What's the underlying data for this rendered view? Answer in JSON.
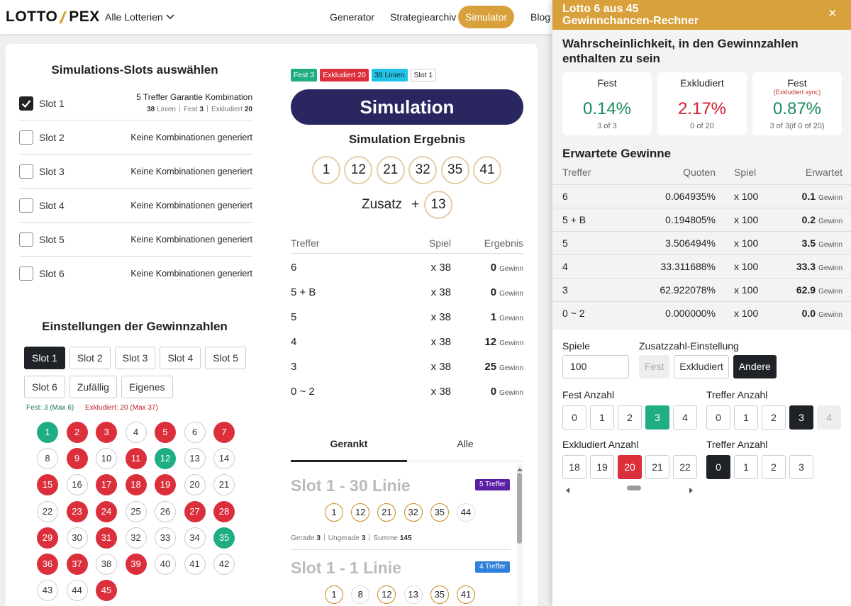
{
  "header": {
    "logo_left": "LOTTO",
    "logo_right": "PEX",
    "lottery_menu": "Alle Lotterien",
    "nav": [
      "Generator",
      "Strategiearchiv",
      "Simulator",
      "Blog"
    ],
    "active_nav": 2
  },
  "slots": {
    "title": "Simulations-Slots auswählen",
    "items": [
      {
        "label": "Slot 1",
        "checked": true,
        "desc": "5 Treffer Garantie Kombination",
        "meta": [
          [
            "38",
            "Linien"
          ],
          [
            "Fest",
            "3"
          ],
          [
            "Exkludiert",
            "20"
          ]
        ]
      },
      {
        "label": "Slot 2",
        "checked": false,
        "desc": "Keine Kombinationen generiert"
      },
      {
        "label": "Slot 3",
        "checked": false,
        "desc": "Keine Kombinationen generiert"
      },
      {
        "label": "Slot 4",
        "checked": false,
        "desc": "Keine Kombinationen generiert"
      },
      {
        "label": "Slot 5",
        "checked": false,
        "desc": "Keine Kombinationen generiert"
      },
      {
        "label": "Slot 6",
        "checked": false,
        "desc": "Keine Kombinationen generiert"
      }
    ]
  },
  "settings": {
    "title": "Einstellungen der Gewinnzahlen",
    "buttons": [
      "Slot 1",
      "Slot 2",
      "Slot 3",
      "Slot 4",
      "Slot 5",
      "Slot 6",
      "Zufällig",
      "Eigenes"
    ],
    "active": 0,
    "fest_note": "Fest: 3 (Max 6)",
    "excluded_note": "Exkludiert: 20 (Max 37)",
    "numbers": [
      1,
      2,
      3,
      4,
      5,
      6,
      7,
      8,
      9,
      10,
      11,
      12,
      13,
      14,
      15,
      16,
      17,
      18,
      19,
      20,
      21,
      22,
      23,
      24,
      25,
      26,
      27,
      28,
      29,
      30,
      31,
      32,
      33,
      34,
      35,
      36,
      37,
      38,
      39,
      40,
      41,
      42,
      43,
      44,
      45
    ],
    "fest": [
      1,
      12,
      35
    ],
    "excluded": [
      2,
      3,
      5,
      7,
      9,
      11,
      15,
      17,
      18,
      19,
      23,
      24,
      27,
      28,
      29,
      31,
      36,
      37,
      39,
      45
    ]
  },
  "simulation": {
    "tags": [
      {
        "text": "Fest 3",
        "color": "#1fae84",
        "text_color": "#ffffff"
      },
      {
        "text": "Exkludiert 20",
        "color": "#dc2f3c",
        "text_color": "#ffffff"
      },
      {
        "text": "38 Linien",
        "color": "#1fc4e8",
        "text_color": "#1f2328"
      },
      {
        "text": "Slot 1",
        "color": "#ffffff",
        "text_color": "#1f2328"
      }
    ],
    "button": "Simulation",
    "result_title": "Simulation Ergebnis",
    "balls": [
      1,
      12,
      21,
      32,
      35,
      41
    ],
    "bonus_label": "Zusatz",
    "plus": "+",
    "bonus": 13,
    "table": {
      "header": [
        "Treffer",
        "Spiel",
        "Ergebnis"
      ],
      "rows": [
        [
          "6",
          "x 38",
          "0",
          "Gewinn"
        ],
        [
          "5 + B",
          "x 38",
          "0",
          "Gewinn"
        ],
        [
          "5",
          "x 38",
          "1",
          "Gewinn"
        ],
        [
          "4",
          "x 38",
          "12",
          "Gewinn"
        ],
        [
          "3",
          "x 38",
          "25",
          "Gewinn"
        ],
        [
          "0 ~ 2",
          "x 38",
          "0",
          "Gewinn"
        ]
      ]
    }
  },
  "ranking": {
    "tabs": [
      "Gerankt",
      "Alle"
    ],
    "active": 0,
    "cards": [
      {
        "title": "Slot 1 - 30 Linie",
        "badge": "5 Treffer",
        "badge_color": "#5b1fa6",
        "balls": [
          1,
          12,
          21,
          32,
          35,
          44
        ],
        "hits": [
          1,
          12,
          21,
          32,
          35
        ],
        "stats": [
          [
            "Gerade",
            "3"
          ],
          [
            "Ungerade",
            "3"
          ],
          [
            "Summe",
            "145"
          ]
        ]
      },
      {
        "title": "Slot 1 - 1 Linie",
        "badge": "4 Treffer",
        "badge_color": "#2f7fdc",
        "balls": [
          1,
          8,
          12,
          13,
          35,
          41
        ],
        "hits": [
          1,
          12,
          35,
          41
        ]
      }
    ]
  },
  "panel": {
    "title": [
      "Lotto 6 aus 45",
      "Gewinnchancen-Rechner"
    ],
    "close": "×",
    "prob_title": "Wahrscheinlichkeit, in den Gewinnzahlen enthalten zu sein",
    "prob_cards": [
      {
        "title": "Fest",
        "value": "0.14%",
        "sub": "3 of 3",
        "color": "#1a8a5a"
      },
      {
        "title": "Exkludiert",
        "value": "2.17%",
        "sub": "0 of 20",
        "color": "#d0202e"
      },
      {
        "title": "Fest",
        "note": "(Exkludiert sync)",
        "value": "0.87%",
        "sub": "3 of 3(if 0 of 20)",
        "color": "#1a8a5a"
      }
    ],
    "expected_title": "Erwartete Gewinne",
    "expected": {
      "header": [
        "Treffer",
        "Quoten",
        "Spiel",
        "Erwartet"
      ],
      "rows": [
        [
          "6",
          "0.064935%",
          "x 100",
          "0.1",
          "Gewinn"
        ],
        [
          "5 + B",
          "0.194805%",
          "x 100",
          "0.2",
          "Gewinn"
        ],
        [
          "5",
          "3.506494%",
          "x 100",
          "3.5",
          "Gewinn"
        ],
        [
          "4",
          "33.311688%",
          "x 100",
          "33.3",
          "Gewinn"
        ],
        [
          "3",
          "62.922078%",
          "x 100",
          "62.9",
          "Gewinn"
        ],
        [
          "0 ~ 2",
          "0.000000%",
          "x 100",
          "0.0",
          "Gewinn"
        ]
      ]
    },
    "games_label": "Spiele",
    "games_value": "100",
    "bonus_label": "Zusatzzahl-Einstellung",
    "bonus_options": [
      "Fest",
      "Exkludiert",
      "Andere"
    ],
    "bonus_active": 2,
    "bonus_disabled": 0,
    "groups": [
      {
        "label": "Fest Anzahl",
        "options": [
          "0",
          "1",
          "2",
          "3",
          "4"
        ],
        "active": 3,
        "color": "#1fae84"
      },
      {
        "label": "Treffer Anzahl",
        "options": [
          "0",
          "1",
          "2",
          "3",
          "4"
        ],
        "active": 3,
        "color": "#1f2328",
        "disabled": [
          4
        ]
      },
      {
        "label": "Exkludiert Anzahl",
        "options": [
          "18",
          "19",
          "20",
          "21",
          "22"
        ],
        "active": 2,
        "color": "#dc2f3c"
      },
      {
        "label": "Treffer Anzahl",
        "options": [
          "0",
          "1",
          "2",
          "3"
        ],
        "active": 0,
        "color": "#1f2328"
      }
    ]
  }
}
